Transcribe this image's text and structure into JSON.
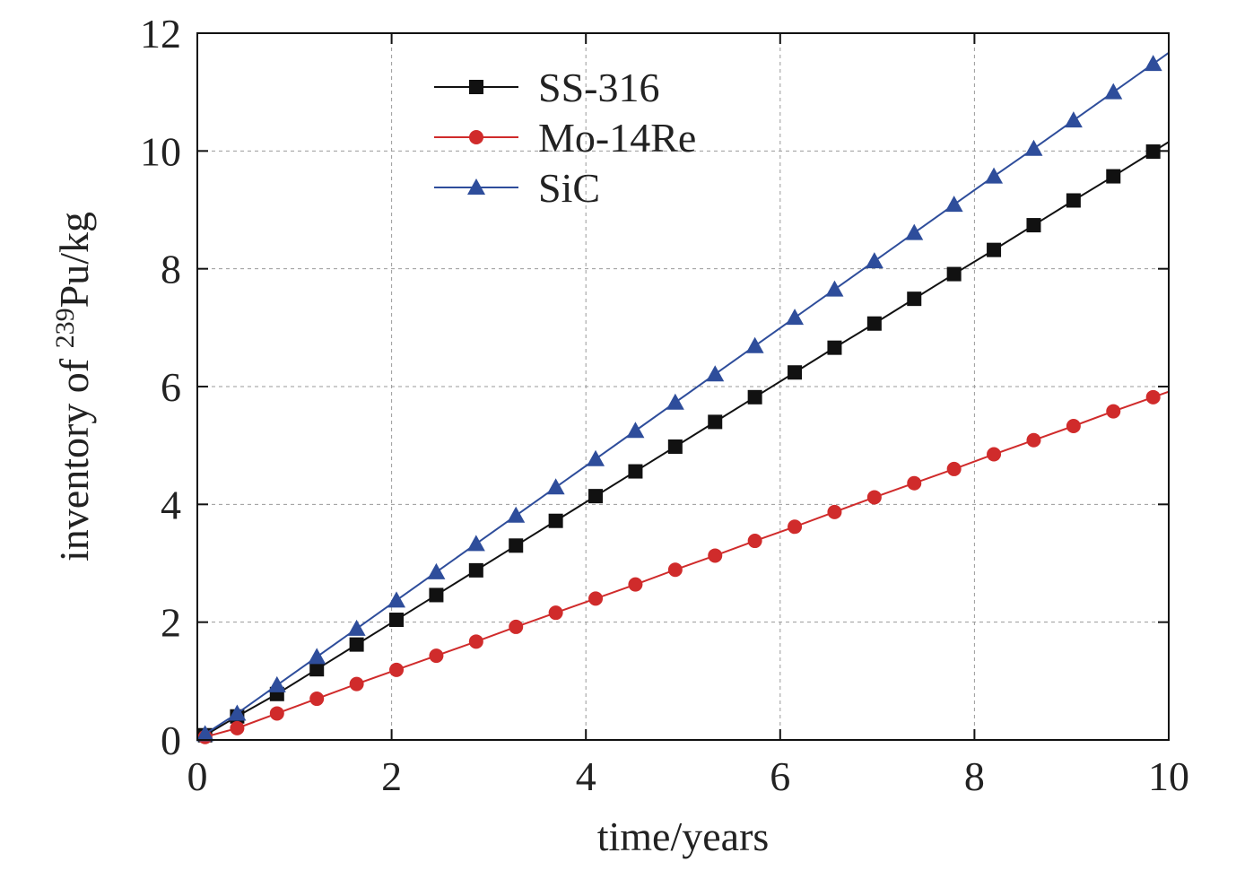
{
  "chart_data": {
    "type": "line",
    "xlabel": "time/years",
    "ylabel_parts": {
      "prefix": "inventory of ",
      "superscript": "239",
      "suffix": "Pu/kg"
    },
    "xlim": [
      0,
      10
    ],
    "ylim": [
      0,
      12
    ],
    "xticks": [
      "0",
      "2",
      "4",
      "6",
      "8",
      "10"
    ],
    "yticks": [
      "0",
      "2",
      "4",
      "6",
      "8",
      "10",
      "12"
    ],
    "grid": true,
    "legend_position": "top-center",
    "x": [
      0.08,
      0.41,
      0.82,
      1.23,
      1.64,
      2.05,
      2.46,
      2.87,
      3.28,
      3.69,
      4.1,
      4.51,
      4.92,
      5.33,
      5.74,
      6.15,
      6.56,
      6.97,
      7.38,
      7.79,
      8.2,
      8.61,
      9.02,
      9.43,
      9.84
    ],
    "series": [
      {
        "name": "SS-316",
        "color": "#111111",
        "marker": "square",
        "values": [
          0.08,
          0.4,
          0.78,
          1.2,
          1.62,
          2.04,
          2.46,
          2.88,
          3.3,
          3.72,
          4.14,
          4.56,
          4.98,
          5.4,
          5.82,
          6.24,
          6.66,
          7.07,
          7.49,
          7.91,
          8.32,
          8.74,
          9.16,
          9.57,
          9.99
        ]
      },
      {
        "name": "Mo-14Re",
        "color": "#d02b2b",
        "marker": "circle",
        "values": [
          0.05,
          0.2,
          0.45,
          0.7,
          0.95,
          1.19,
          1.43,
          1.67,
          1.92,
          2.16,
          2.4,
          2.64,
          2.89,
          3.13,
          3.38,
          3.62,
          3.87,
          4.12,
          4.36,
          4.6,
          4.85,
          5.09,
          5.33,
          5.58,
          5.82
        ]
      },
      {
        "name": "SiC",
        "color": "#2e4d9b",
        "marker": "triangle",
        "values": [
          0.1,
          0.45,
          0.93,
          1.41,
          1.89,
          2.37,
          2.85,
          3.33,
          3.81,
          4.29,
          4.77,
          5.25,
          5.73,
          6.21,
          6.69,
          7.17,
          7.65,
          8.13,
          8.61,
          9.09,
          9.57,
          10.04,
          10.52,
          11.0,
          11.48
        ]
      }
    ]
  }
}
